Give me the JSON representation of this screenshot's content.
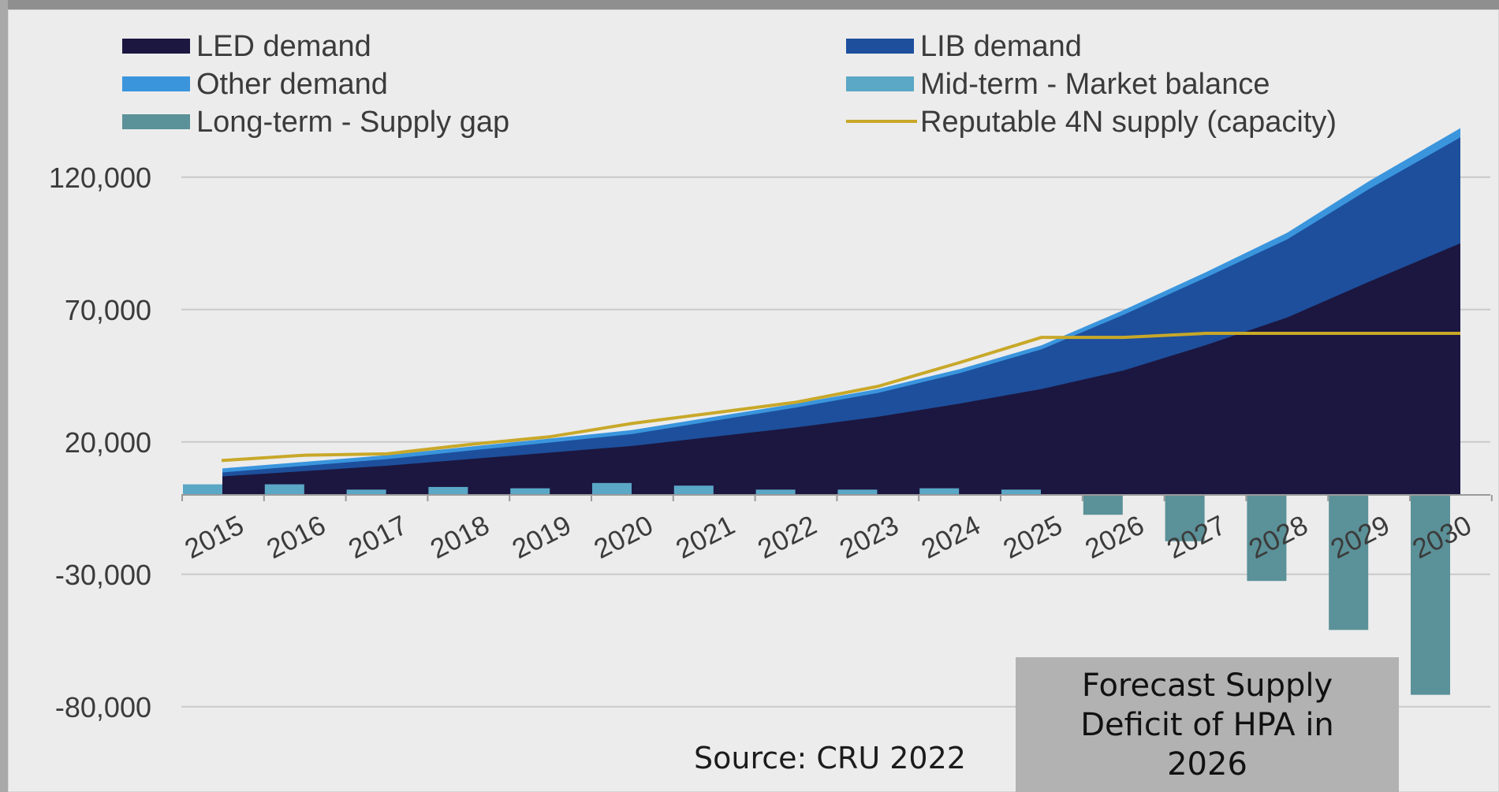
{
  "chart_data": {
    "type": "area",
    "categories": [
      "2015",
      "2016",
      "2017",
      "2018",
      "2019",
      "2020",
      "2021",
      "2022",
      "2023",
      "2024",
      "2025",
      "2026",
      "2027",
      "2028",
      "2029",
      "2030"
    ],
    "ylim": [
      -100000,
      150000
    ],
    "yticks": [
      120000,
      70000,
      20000,
      -30000,
      -80000
    ],
    "ytick_labels": [
      "120,000",
      "70,000",
      "20,000",
      "-30,000",
      "-80,000"
    ],
    "grid": true,
    "legend_position": "top",
    "stacked_series": [
      {
        "name": "LED demand",
        "color": "#1c1740",
        "values": [
          7000,
          9000,
          11000,
          13500,
          16000,
          18500,
          22000,
          25500,
          29500,
          34500,
          40000,
          47000,
          56500,
          67000,
          80500,
          95000
        ]
      },
      {
        "name": "LIB demand",
        "color": "#1d4f9c",
        "values": [
          1500,
          2000,
          2500,
          3200,
          3800,
          4500,
          6000,
          7500,
          9000,
          11500,
          15000,
          21000,
          25500,
          29500,
          35000,
          40000
        ]
      },
      {
        "name": "Other demand",
        "color": "#3a95dd",
        "values": [
          1500,
          1500,
          1500,
          1500,
          1500,
          1500,
          1500,
          1500,
          1500,
          1500,
          1500,
          1800,
          2000,
          2500,
          3000,
          3500
        ]
      }
    ],
    "bar_series": [
      {
        "name": "Mid-term - Market balance",
        "color": "#5aa7c6",
        "values": [
          4000,
          4000,
          2000,
          3000,
          2500,
          4500,
          3500,
          2000,
          2000,
          2500,
          2000,
          null,
          null,
          null,
          null,
          null
        ]
      },
      {
        "name": "Long-term - Supply gap",
        "color": "#5b9198",
        "values": [
          null,
          null,
          null,
          null,
          null,
          null,
          null,
          null,
          null,
          null,
          null,
          -7500,
          -17500,
          -32500,
          -51000,
          -75500
        ]
      }
    ],
    "line_series": [
      {
        "name": "Reputable 4N supply (capacity)",
        "color": "#c8a829",
        "values": [
          13000,
          15000,
          15500,
          19000,
          22000,
          27000,
          31000,
          35000,
          41000,
          50000,
          59500,
          59500,
          61000,
          61000,
          61000,
          61000
        ]
      }
    ],
    "legend": [
      {
        "label": "LED demand",
        "color": "#1c1740",
        "kind": "swatch"
      },
      {
        "label": "LIB demand",
        "color": "#1d4f9c",
        "kind": "swatch"
      },
      {
        "label": "Other demand",
        "color": "#3a95dd",
        "kind": "swatch"
      },
      {
        "label": "Mid-term - Market balance",
        "color": "#5aa7c6",
        "kind": "swatch"
      },
      {
        "label": "Long-term - Supply gap",
        "color": "#5b9198",
        "kind": "swatch"
      },
      {
        "label": "Reputable 4N supply (capacity)",
        "color": "#c8a829",
        "kind": "line"
      }
    ]
  },
  "source": "Source: CRU 2022",
  "callout": {
    "lines": [
      "Forecast Supply",
      "Deficit of HPA in",
      "2026"
    ],
    "background": "#b3b2b2"
  }
}
